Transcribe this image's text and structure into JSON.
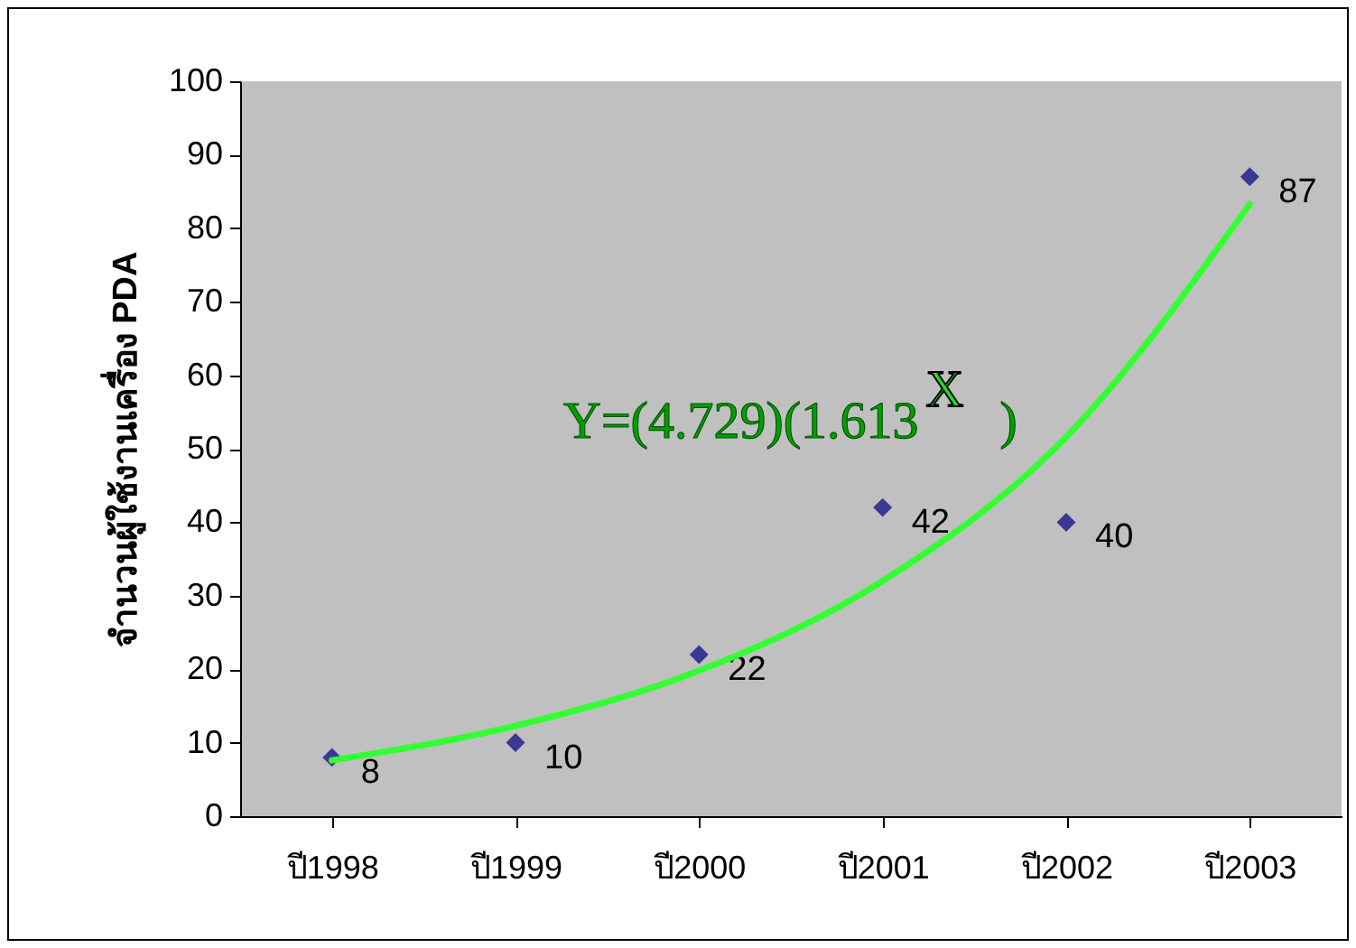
{
  "chart_data": {
    "type": "scatter",
    "ylabel": "จำนวนผู้ใช้งานเครื่อง PDA",
    "categories": [
      "ปี1998",
      "ปี1999",
      "ปี2000",
      "ปี2001",
      "ปี2002",
      "ปี2003"
    ],
    "series": [
      {
        "color": "#000080",
        "values": [
          8,
          10,
          22,
          42,
          40,
          87
        ],
        "marker": "diamond",
        "data_labels": true
      },
      {
        "type": "line",
        "color": "#33ff33",
        "x": [
          "ปี1998",
          "ปี1999",
          "ปี2000",
          "ปี2001",
          "ปี2002",
          "ปี2003"
        ],
        "values": [
          7.6,
          12.3,
          19.8,
          32,
          51.6,
          83.3
        ]
      }
    ],
    "ylim": [
      0,
      100
    ],
    "yticks": [
      0,
      10,
      20,
      30,
      40,
      50,
      60,
      70,
      80,
      90,
      100
    ],
    "grid": false,
    "annotations": [
      "Y=(4.729)(1.613$^{X}$)"
    ]
  }
}
